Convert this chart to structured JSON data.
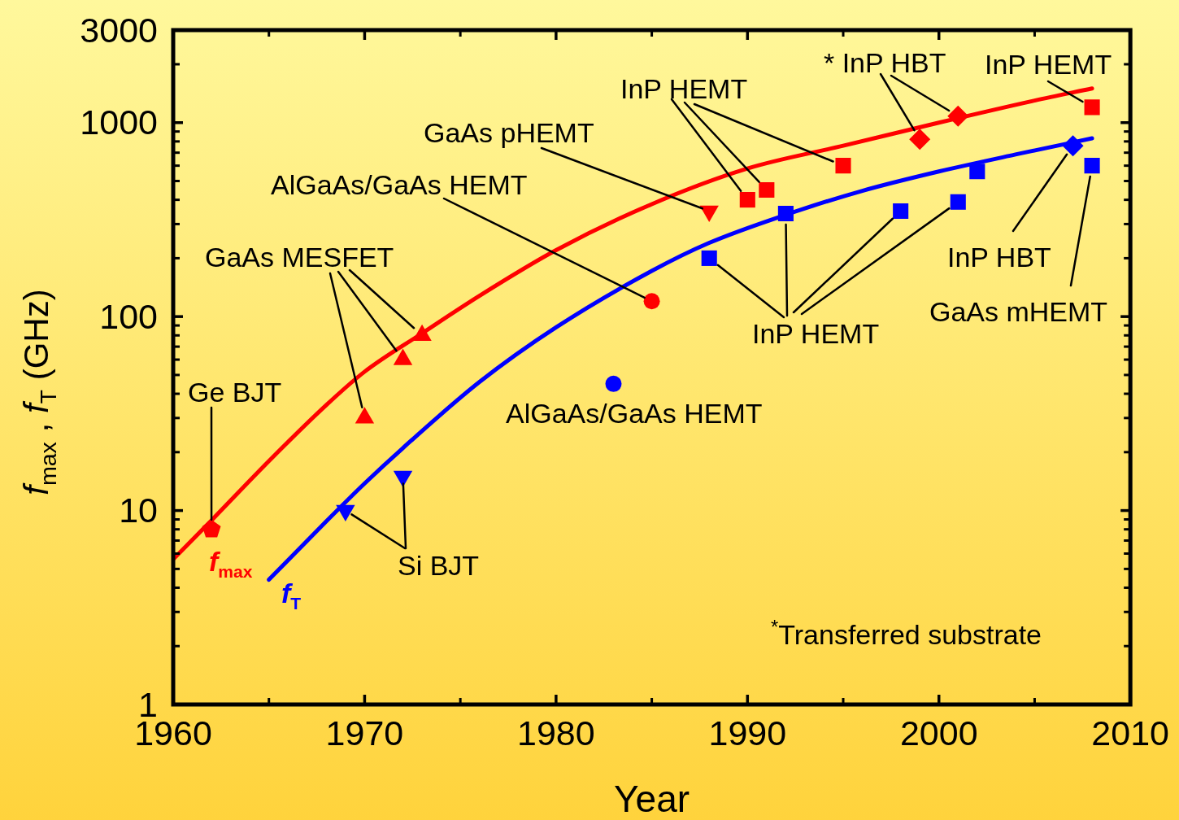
{
  "chart_data": {
    "type": "scatter",
    "xlabel": "Year",
    "ylabel": "f$_{max}$ , f$_{T}$ (GHz)",
    "xlim": [
      1960,
      2010
    ],
    "xticks": [
      1960,
      {
        "value": 1965,
        "label": null
      },
      1970,
      {
        "value": 1975,
        "label": null
      },
      1980,
      {
        "value": 1985,
        "label": null
      },
      1990,
      {
        "value": 1995,
        "label": null
      },
      2000,
      {
        "value": 2005,
        "label": null
      },
      2010
    ],
    "ylim": [
      1,
      3000
    ],
    "yticks": [
      1,
      {
        "value": 2,
        "label": null
      },
      {
        "value": 3,
        "label": null
      },
      {
        "value": 4,
        "label": null
      },
      {
        "value": 5,
        "label": null
      },
      {
        "value": 6,
        "label": null
      },
      {
        "value": 7,
        "label": null
      },
      {
        "value": 8,
        "label": null
      },
      {
        "value": 9,
        "label": null
      },
      10,
      {
        "value": 20,
        "label": null
      },
      {
        "value": 30,
        "label": null
      },
      {
        "value": 40,
        "label": null
      },
      {
        "value": 50,
        "label": null
      },
      {
        "value": 60,
        "label": null
      },
      {
        "value": 70,
        "label": null
      },
      {
        "value": 80,
        "label": null
      },
      {
        "value": 90,
        "label": null
      },
      100,
      {
        "value": 200,
        "label": null
      },
      {
        "value": 300,
        "label": null
      },
      {
        "value": 400,
        "label": null
      },
      {
        "value": 500,
        "label": null
      },
      {
        "value": 600,
        "label": null
      },
      {
        "value": 700,
        "label": null
      },
      {
        "value": 800,
        "label": null
      },
      {
        "value": 900,
        "label": null
      },
      1000,
      {
        "value": 2000,
        "label": null
      },
      3000
    ],
    "log": "y",
    "grid": false,
    "series": [
      {
        "name": "f$_{max}$",
        "type": "line",
        "color": "#ff0000",
        "x": [
          1960,
          1962,
          1965,
          1968,
          1970,
          1973,
          1976,
          1980,
          1985,
          1990,
          1995,
          2000,
          2005,
          2008
        ],
        "values": [
          5.6,
          8.9,
          18,
          35,
          52,
          82,
          128,
          220,
          380,
          580,
          760,
          1000,
          1300,
          1500
        ]
      },
      {
        "name": "f$_{T}$",
        "type": "line",
        "color": "#0000ff",
        "x": [
          1965,
          1968,
          1970,
          1972,
          1976,
          1980,
          1985,
          1988,
          1992,
          1996,
          2000,
          2004,
          2008
        ],
        "values": [
          4.4,
          8.8,
          13.8,
          21,
          46,
          88,
          172,
          240,
          335,
          445,
          560,
          685,
          830
        ]
      },
      {
        "name": "Ge BJT",
        "type": "scatter",
        "color": "#ff0000",
        "x": [
          1962
        ],
        "values": [
          8
        ]
      },
      {
        "name": "GaAs MESFET",
        "type": "scatter",
        "marker": "triangle",
        "color": "#ff0000",
        "x": [
          1970,
          1972,
          1973
        ],
        "values": [
          30,
          60,
          80
        ]
      },
      {
        "name": "AlGaAs/GaAs HEMT",
        "type": "scatter",
        "marker": "circle",
        "color": "#ff0000",
        "x": [
          1985
        ],
        "values": [
          120
        ]
      },
      {
        "name": "GaAs pHEMT",
        "type": "scatter",
        "marker": "triangle-down",
        "color": "#ff0000",
        "x": [
          1988
        ],
        "values": [
          350
        ]
      },
      {
        "name": "InP HEMT",
        "type": "scatter",
        "marker": "square",
        "color": "#ff0000",
        "x": [
          1990,
          1991,
          1995
        ],
        "values": [
          400,
          450,
          600
        ]
      },
      {
        "name": "* InP HBT",
        "type": "scatter",
        "marker": "diamond",
        "color": "#ff0000",
        "x": [
          1999,
          2001
        ],
        "values": [
          820,
          1080
        ]
      },
      {
        "name": "InP HEMT",
        "type": "scatter",
        "marker": "square",
        "color": "#ff0000",
        "x": [
          2008
        ],
        "values": [
          1200
        ]
      },
      {
        "name": "Si BJT",
        "type": "scatter",
        "marker": "triangle-down",
        "color": "#0000ff",
        "x": [
          1969,
          1972
        ],
        "values": [
          10,
          15
        ]
      },
      {
        "name": "AlGaAs/GaAs HEMT",
        "type": "scatter",
        "marker": "circle",
        "color": "#0000ff",
        "x": [
          1983
        ],
        "values": [
          45
        ]
      },
      {
        "name": "InP HEMT",
        "type": "scatter",
        "marker": "square",
        "color": "#0000ff",
        "x": [
          1988,
          1992,
          1998,
          2001,
          2002
        ],
        "values": [
          200,
          340,
          350,
          390,
          560
        ]
      },
      {
        "name": "InP HBT",
        "type": "scatter",
        "marker": "diamond",
        "color": "#0000ff",
        "x": [
          2007
        ],
        "values": [
          760
        ]
      },
      {
        "name": "GaAs mHEMT",
        "type": "scatter",
        "marker": "square",
        "color": "#0000ff",
        "x": [
          2008
        ],
        "values": [
          600
        ]
      }
    ],
    "annotations": [
      "$^{*}$Transferred substrate"
    ]
  }
}
